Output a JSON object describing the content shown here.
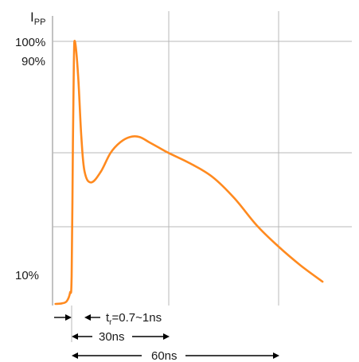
{
  "chart_data": {
    "type": "line",
    "title": "",
    "ylabel": "I",
    "ylabel_sub": "PP",
    "y_axis": {
      "unit": "% of peak",
      "ylim": [
        0,
        100
      ]
    },
    "x_axis": {
      "unit": "ns",
      "xlim": [
        -5,
        75
      ]
    },
    "y_ticks": [
      {
        "value": 100,
        "label": "100%"
      },
      {
        "value": 90,
        "label": "90%"
      },
      {
        "value": 10,
        "label": "10%"
      }
    ],
    "x_gridlines_ns": [
      0,
      30,
      60
    ],
    "y_gridlines_pct": [
      10,
      50,
      100
    ],
    "series": [
      {
        "color": "#ff8a1f",
        "x": [
          -5,
          -3,
          -1.5,
          -0.5,
          0,
          0.4,
          0.7,
          1,
          2,
          3,
          4,
          6,
          9,
          12,
          15,
          18,
          21,
          24,
          27,
          30,
          36,
          42,
          48,
          54,
          60,
          66,
          72
        ],
        "y": [
          0,
          0.2,
          1,
          4,
          10,
          60,
          90,
          100,
          85,
          62,
          49,
          45,
          49,
          56,
          60,
          62,
          62,
          60,
          58,
          56,
          52,
          47,
          39,
          29,
          21,
          14,
          8
        ]
      }
    ],
    "annotations": [
      {
        "text_main": "t",
        "text_sub": "r",
        "text_rest": "=0.7~1ns",
        "from_ns": 0,
        "to_ns": 1
      },
      {
        "text": "30ns",
        "from_ns": 0,
        "to_ns": 30
      },
      {
        "text": "60ns",
        "from_ns": 0,
        "to_ns": 60
      }
    ]
  }
}
